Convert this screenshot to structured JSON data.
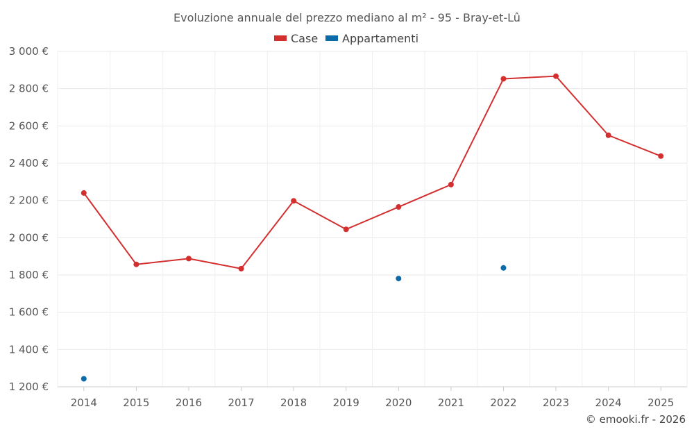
{
  "chart_data": {
    "type": "line",
    "title": "Evoluzione annuale del prezzo mediano al m² - 95 - Bray-et-Lû",
    "categories": [
      "2014",
      "2015",
      "2016",
      "2017",
      "2018",
      "2019",
      "2020",
      "2021",
      "2022",
      "2023",
      "2024",
      "2025"
    ],
    "series": [
      {
        "name": "Case",
        "color": "#d32f2f",
        "values": [
          2240,
          1857,
          1888,
          1834,
          2198,
          2045,
          2165,
          2285,
          2853,
          2867,
          2550,
          2438
        ]
      },
      {
        "name": "Appartamenti",
        "color": "#0d6aa8",
        "values": [
          1243,
          null,
          null,
          null,
          null,
          null,
          1781,
          null,
          1838,
          null,
          null,
          null
        ]
      }
    ],
    "ylim": [
      1200,
      3000
    ],
    "yticks": [
      1200,
      1400,
      1600,
      1800,
      2000,
      2200,
      2400,
      2600,
      2800,
      3000
    ],
    "ytick_labels": [
      "1 200 €",
      "1 400 €",
      "1 600 €",
      "1 800 €",
      "2 000 €",
      "2 200 €",
      "2 400 €",
      "2 600 €",
      "2 800 €",
      "3 000 €"
    ],
    "xlabel": "",
    "ylabel": "",
    "grid": true,
    "legend_position": "top-center"
  },
  "credit": "© emooki.fr - 2026"
}
